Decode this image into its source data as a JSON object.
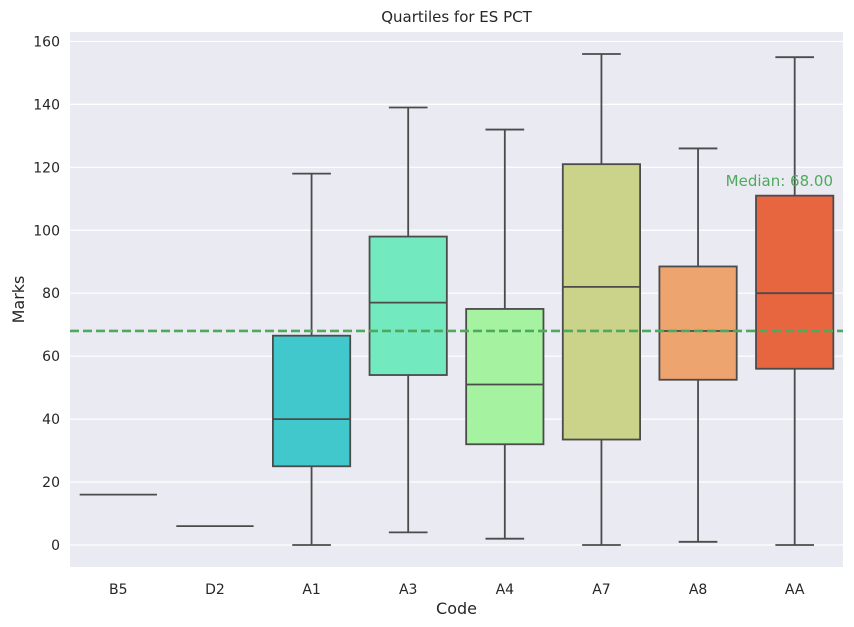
{
  "chart_data": {
    "type": "box",
    "title": "Quartiles for ES PCT",
    "xlabel": "Code",
    "ylabel": "Marks",
    "categories": [
      "B5",
      "D2",
      "A1",
      "A3",
      "A4",
      "A7",
      "A8",
      "AA"
    ],
    "boxes": [
      {
        "category": "B5",
        "min": 16,
        "q1": 16,
        "median": 16,
        "q3": 16,
        "max": 16,
        "color": "#4b4b4b"
      },
      {
        "category": "D2",
        "min": 6,
        "q1": 6,
        "median": 6,
        "q3": 6,
        "max": 6,
        "color": "#4b4b4b"
      },
      {
        "category": "A1",
        "min": 0,
        "q1": 25,
        "median": 40,
        "q3": 66.5,
        "max": 118,
        "color": "#40c8cc"
      },
      {
        "category": "A3",
        "min": 4,
        "q1": 54,
        "median": 77,
        "q3": 98,
        "max": 139,
        "color": "#72e9bf"
      },
      {
        "category": "A4",
        "min": 2,
        "q1": 32,
        "median": 51,
        "q3": 75,
        "max": 132,
        "color": "#a5f3a0"
      },
      {
        "category": "A7",
        "min": 0,
        "q1": 33.5,
        "median": 82,
        "q3": 121,
        "max": 156,
        "color": "#cbd28a"
      },
      {
        "category": "A8",
        "min": 1,
        "q1": 52.5,
        "median": 68,
        "q3": 88.5,
        "max": 126,
        "color": "#eda46e"
      },
      {
        "category": "AA",
        "min": 0,
        "q1": 56,
        "median": 80,
        "q3": 111,
        "max": 155,
        "color": "#e8663f"
      }
    ],
    "yticks": [
      0,
      20,
      40,
      60,
      80,
      100,
      120,
      140,
      160
    ],
    "ylim": [
      -7,
      163
    ],
    "grid": true,
    "reference_line": {
      "value": 68.0,
      "label": "Median: 68.00",
      "color": "#4daa5c",
      "style": "dashed"
    },
    "colors": {
      "background": "#eaeaf2",
      "grid": "#ffffff",
      "box_edge": "#4b4b4b",
      "text": "#262626"
    }
  }
}
